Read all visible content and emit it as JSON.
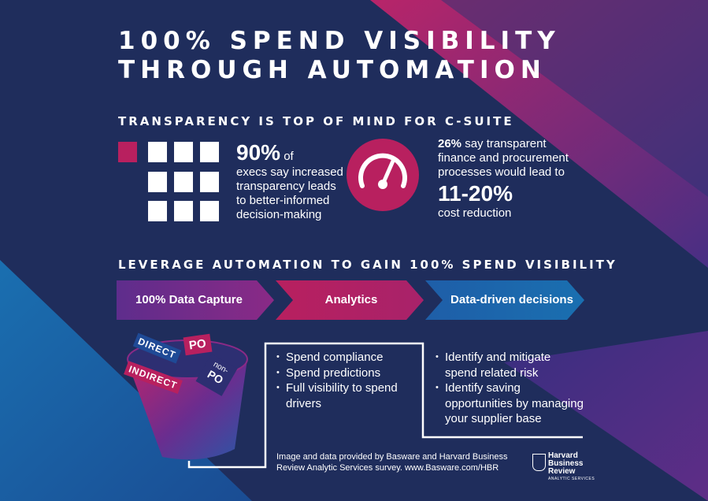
{
  "title": {
    "line1": "100% SPEND VISIBILITY",
    "line2": "THROUGH AUTOMATION"
  },
  "section1": {
    "heading": "TRANSPARENCY IS TOP OF MIND FOR C-SUITE",
    "stat1": {
      "big": "90%",
      "suffix": " of",
      "lines": [
        "execs say increased",
        "transparency leads",
        "to better-informed",
        "decision-making"
      ]
    },
    "stat2": {
      "pct": "26%",
      "line1_rest": " say transparent",
      "line2": "finance and procurement",
      "line3": "processes would lead to",
      "big": "11-20%",
      "line4": "cost reduction"
    }
  },
  "section2": {
    "heading": "LEVERAGE AUTOMATION TO GAIN 100% SPEND VISIBILITY",
    "steps": [
      "100% Data Capture",
      "Analytics",
      "Data-driven decisions"
    ]
  },
  "bucket": {
    "tags": [
      "DIRECT",
      "INDIRECT",
      "PO",
      "non-",
      "PO"
    ]
  },
  "analytics_bullets": [
    [
      "Spend compliance"
    ],
    [
      "Spend predictions"
    ],
    [
      "Full visibility to spend",
      "drivers"
    ]
  ],
  "decision_bullets": [
    [
      "Identify and mitigate",
      "spend related risk"
    ],
    [
      "Identify saving",
      "opportunities by managing",
      "your supplier base"
    ]
  ],
  "footer": {
    "line1": "Image and data provided by Basware and Harvard Business",
    "line2": "Review Analytic Services survey. www.Basware.com/HBR"
  },
  "logo": {
    "line1": "Harvard",
    "line2": "Business",
    "line3": "Review",
    "sub": "ANALYTIC SERVICES"
  },
  "colors": {
    "background": "#1f2d5c",
    "magenta": "#b8205f",
    "purple": "#6b2d8f",
    "blue": "#1a65a6",
    "white": "#ffffff"
  },
  "icons": [
    "person-icon",
    "gauge-icon",
    "harvard-shield-icon"
  ]
}
